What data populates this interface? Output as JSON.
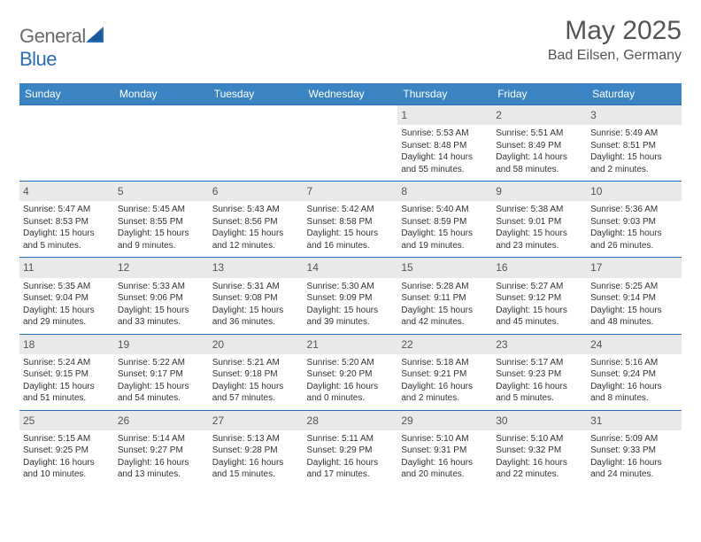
{
  "brand": {
    "part1": "General",
    "part2": "Blue"
  },
  "header": {
    "month_title": "May 2025",
    "location": "Bad Eilsen, Germany"
  },
  "colors": {
    "header_bg": "#3b84c4",
    "header_text": "#ffffff",
    "daynum_bg": "#e9e9e9",
    "row_border": "#2a6fb5",
    "body_text": "#333333",
    "title_text": "#555555",
    "logo_gray": "#6b6b6b",
    "logo_blue": "#2a6fb5",
    "page_bg": "#ffffff"
  },
  "typography": {
    "body_fontsize": 10,
    "daynum_fontsize": 12,
    "header_fontsize": 12,
    "title_fontsize": 30,
    "location_fontsize": 16
  },
  "weekdays": [
    "Sunday",
    "Monday",
    "Tuesday",
    "Wednesday",
    "Thursday",
    "Friday",
    "Saturday"
  ],
  "weeks": [
    [
      null,
      null,
      null,
      null,
      {
        "n": "1",
        "sr": "Sunrise: 5:53 AM",
        "ss": "Sunset: 8:48 PM",
        "d1": "Daylight: 14 hours",
        "d2": "and 55 minutes."
      },
      {
        "n": "2",
        "sr": "Sunrise: 5:51 AM",
        "ss": "Sunset: 8:49 PM",
        "d1": "Daylight: 14 hours",
        "d2": "and 58 minutes."
      },
      {
        "n": "3",
        "sr": "Sunrise: 5:49 AM",
        "ss": "Sunset: 8:51 PM",
        "d1": "Daylight: 15 hours",
        "d2": "and 2 minutes."
      }
    ],
    [
      {
        "n": "4",
        "sr": "Sunrise: 5:47 AM",
        "ss": "Sunset: 8:53 PM",
        "d1": "Daylight: 15 hours",
        "d2": "and 5 minutes."
      },
      {
        "n": "5",
        "sr": "Sunrise: 5:45 AM",
        "ss": "Sunset: 8:55 PM",
        "d1": "Daylight: 15 hours",
        "d2": "and 9 minutes."
      },
      {
        "n": "6",
        "sr": "Sunrise: 5:43 AM",
        "ss": "Sunset: 8:56 PM",
        "d1": "Daylight: 15 hours",
        "d2": "and 12 minutes."
      },
      {
        "n": "7",
        "sr": "Sunrise: 5:42 AM",
        "ss": "Sunset: 8:58 PM",
        "d1": "Daylight: 15 hours",
        "d2": "and 16 minutes."
      },
      {
        "n": "8",
        "sr": "Sunrise: 5:40 AM",
        "ss": "Sunset: 8:59 PM",
        "d1": "Daylight: 15 hours",
        "d2": "and 19 minutes."
      },
      {
        "n": "9",
        "sr": "Sunrise: 5:38 AM",
        "ss": "Sunset: 9:01 PM",
        "d1": "Daylight: 15 hours",
        "d2": "and 23 minutes."
      },
      {
        "n": "10",
        "sr": "Sunrise: 5:36 AM",
        "ss": "Sunset: 9:03 PM",
        "d1": "Daylight: 15 hours",
        "d2": "and 26 minutes."
      }
    ],
    [
      {
        "n": "11",
        "sr": "Sunrise: 5:35 AM",
        "ss": "Sunset: 9:04 PM",
        "d1": "Daylight: 15 hours",
        "d2": "and 29 minutes."
      },
      {
        "n": "12",
        "sr": "Sunrise: 5:33 AM",
        "ss": "Sunset: 9:06 PM",
        "d1": "Daylight: 15 hours",
        "d2": "and 33 minutes."
      },
      {
        "n": "13",
        "sr": "Sunrise: 5:31 AM",
        "ss": "Sunset: 9:08 PM",
        "d1": "Daylight: 15 hours",
        "d2": "and 36 minutes."
      },
      {
        "n": "14",
        "sr": "Sunrise: 5:30 AM",
        "ss": "Sunset: 9:09 PM",
        "d1": "Daylight: 15 hours",
        "d2": "and 39 minutes."
      },
      {
        "n": "15",
        "sr": "Sunrise: 5:28 AM",
        "ss": "Sunset: 9:11 PM",
        "d1": "Daylight: 15 hours",
        "d2": "and 42 minutes."
      },
      {
        "n": "16",
        "sr": "Sunrise: 5:27 AM",
        "ss": "Sunset: 9:12 PM",
        "d1": "Daylight: 15 hours",
        "d2": "and 45 minutes."
      },
      {
        "n": "17",
        "sr": "Sunrise: 5:25 AM",
        "ss": "Sunset: 9:14 PM",
        "d1": "Daylight: 15 hours",
        "d2": "and 48 minutes."
      }
    ],
    [
      {
        "n": "18",
        "sr": "Sunrise: 5:24 AM",
        "ss": "Sunset: 9:15 PM",
        "d1": "Daylight: 15 hours",
        "d2": "and 51 minutes."
      },
      {
        "n": "19",
        "sr": "Sunrise: 5:22 AM",
        "ss": "Sunset: 9:17 PM",
        "d1": "Daylight: 15 hours",
        "d2": "and 54 minutes."
      },
      {
        "n": "20",
        "sr": "Sunrise: 5:21 AM",
        "ss": "Sunset: 9:18 PM",
        "d1": "Daylight: 15 hours",
        "d2": "and 57 minutes."
      },
      {
        "n": "21",
        "sr": "Sunrise: 5:20 AM",
        "ss": "Sunset: 9:20 PM",
        "d1": "Daylight: 16 hours",
        "d2": "and 0 minutes."
      },
      {
        "n": "22",
        "sr": "Sunrise: 5:18 AM",
        "ss": "Sunset: 9:21 PM",
        "d1": "Daylight: 16 hours",
        "d2": "and 2 minutes."
      },
      {
        "n": "23",
        "sr": "Sunrise: 5:17 AM",
        "ss": "Sunset: 9:23 PM",
        "d1": "Daylight: 16 hours",
        "d2": "and 5 minutes."
      },
      {
        "n": "24",
        "sr": "Sunrise: 5:16 AM",
        "ss": "Sunset: 9:24 PM",
        "d1": "Daylight: 16 hours",
        "d2": "and 8 minutes."
      }
    ],
    [
      {
        "n": "25",
        "sr": "Sunrise: 5:15 AM",
        "ss": "Sunset: 9:25 PM",
        "d1": "Daylight: 16 hours",
        "d2": "and 10 minutes."
      },
      {
        "n": "26",
        "sr": "Sunrise: 5:14 AM",
        "ss": "Sunset: 9:27 PM",
        "d1": "Daylight: 16 hours",
        "d2": "and 13 minutes."
      },
      {
        "n": "27",
        "sr": "Sunrise: 5:13 AM",
        "ss": "Sunset: 9:28 PM",
        "d1": "Daylight: 16 hours",
        "d2": "and 15 minutes."
      },
      {
        "n": "28",
        "sr": "Sunrise: 5:11 AM",
        "ss": "Sunset: 9:29 PM",
        "d1": "Daylight: 16 hours",
        "d2": "and 17 minutes."
      },
      {
        "n": "29",
        "sr": "Sunrise: 5:10 AM",
        "ss": "Sunset: 9:31 PM",
        "d1": "Daylight: 16 hours",
        "d2": "and 20 minutes."
      },
      {
        "n": "30",
        "sr": "Sunrise: 5:10 AM",
        "ss": "Sunset: 9:32 PM",
        "d1": "Daylight: 16 hours",
        "d2": "and 22 minutes."
      },
      {
        "n": "31",
        "sr": "Sunrise: 5:09 AM",
        "ss": "Sunset: 9:33 PM",
        "d1": "Daylight: 16 hours",
        "d2": "and 24 minutes."
      }
    ]
  ]
}
